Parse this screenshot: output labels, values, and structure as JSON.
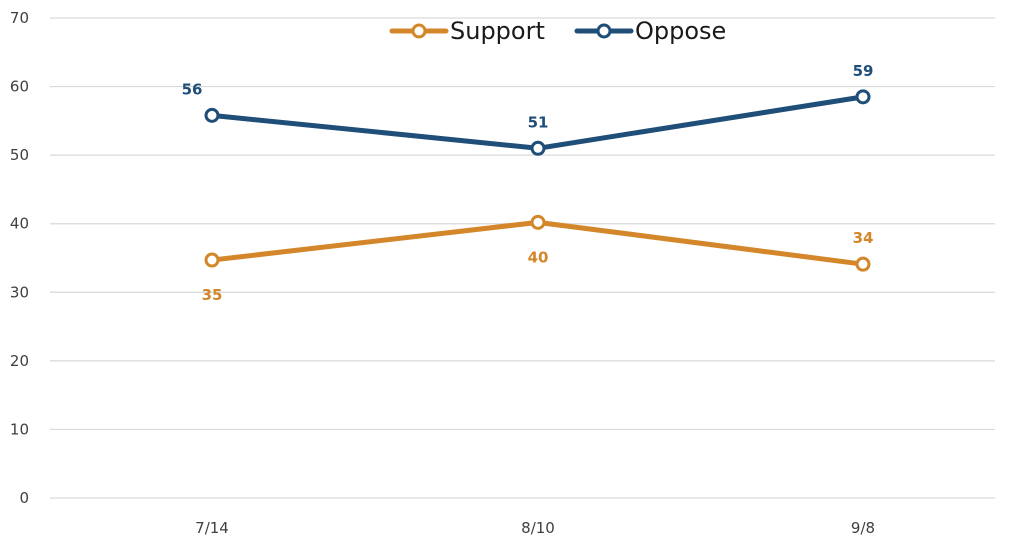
{
  "chart_data": {
    "type": "line",
    "x": [
      "7/14",
      "8/10",
      "9/8"
    ],
    "series": [
      {
        "name": "Support",
        "values": [
          34.7,
          40.2,
          34.1
        ],
        "labels": [
          "35",
          "40",
          "34"
        ],
        "label_position": [
          "below",
          "below",
          "above"
        ],
        "color": "#D4872A"
      },
      {
        "name": "Oppose",
        "values": [
          55.8,
          51.0,
          58.5
        ],
        "labels": [
          "56",
          "51",
          "59"
        ],
        "label_position": [
          "above",
          "above",
          "above"
        ],
        "color": "#1F4E79"
      }
    ],
    "yticks": [
      "0",
      "10",
      "20",
      "30",
      "40",
      "50",
      "60",
      "70"
    ],
    "ylim": [
      0,
      70
    ],
    "grid": true,
    "legend_position": "top-center",
    "gridline_color": "#d9d9d9",
    "title": "",
    "xlabel": "",
    "ylabel": ""
  }
}
